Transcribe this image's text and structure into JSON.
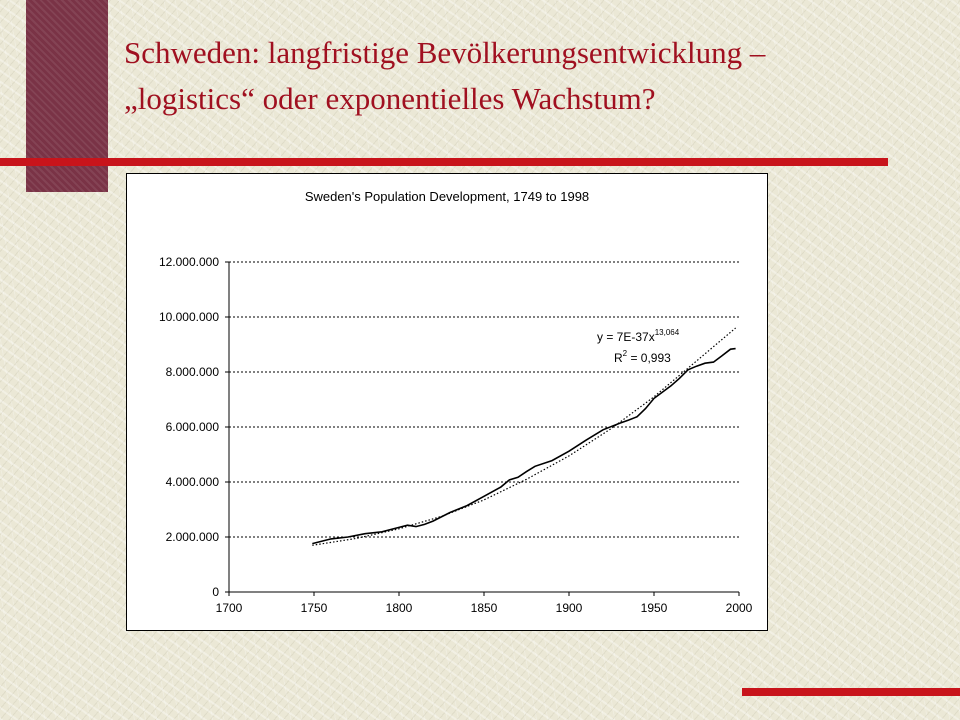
{
  "slide": {
    "title_line1": "Schweden: langfristige Bevölkerungsentwicklung –",
    "title_line2": "„logistics“ oder exponentielles Wachstum?"
  },
  "colors": {
    "accent_red": "#c8141b",
    "title_text": "#a01020",
    "side_block": "#7a3346"
  },
  "chart_data": {
    "type": "line",
    "title": "Sweden's Population Development, 1749 to 1998",
    "xlabel": "",
    "ylabel": "",
    "xlim": [
      1700,
      2000
    ],
    "ylim": [
      0,
      12000000
    ],
    "x_ticks": [
      1700,
      1750,
      1800,
      1850,
      1900,
      1950,
      2000
    ],
    "x_tick_labels": [
      "1700",
      "1750",
      "1800",
      "1850",
      "1900",
      "1950",
      "2000"
    ],
    "y_ticks": [
      0,
      2000000,
      4000000,
      6000000,
      8000000,
      10000000,
      12000000
    ],
    "y_tick_labels": [
      "0",
      "2.000.000",
      "4.000.000",
      "6.000.000",
      "8.000.000",
      "10.000.000",
      "12.000.000"
    ],
    "grid": "horizontal dotted",
    "series": [
      {
        "style": "solid",
        "x": [
          1749,
          1760,
          1770,
          1780,
          1790,
          1800,
          1805,
          1810,
          1815,
          1820,
          1830,
          1840,
          1850,
          1860,
          1865,
          1870,
          1875,
          1880,
          1890,
          1900,
          1910,
          1920,
          1930,
          1935,
          1940,
          1945,
          1950,
          1960,
          1965,
          1970,
          1975,
          1980,
          1985,
          1990,
          1995,
          1998
        ],
        "y": [
          1760000,
          1930000,
          2000000,
          2120000,
          2190000,
          2350000,
          2430000,
          2380000,
          2460000,
          2580000,
          2890000,
          3140000,
          3480000,
          3820000,
          4080000,
          4170000,
          4380000,
          4570000,
          4780000,
          5120000,
          5520000,
          5900000,
          6140000,
          6250000,
          6370000,
          6670000,
          7040000,
          7500000,
          7770000,
          8080000,
          8210000,
          8320000,
          8360000,
          8590000,
          8830000,
          8850000
        ]
      },
      {
        "style": "dotted",
        "x": [
          1749,
          1775,
          1800,
          1825,
          1850,
          1875,
          1900,
          1925,
          1950,
          1975,
          1998
        ],
        "y": [
          1700000,
          1950000,
          2300000,
          2750000,
          3350000,
          4100000,
          4950000,
          5950000,
          7100000,
          8400000,
          9600000
        ]
      }
    ],
    "annotations": {
      "equation": "y = 7E-37x",
      "exponent": "13,064",
      "r2_prefix": "R",
      "r2_sup": "2",
      "r2_value": " = 0,993"
    }
  }
}
